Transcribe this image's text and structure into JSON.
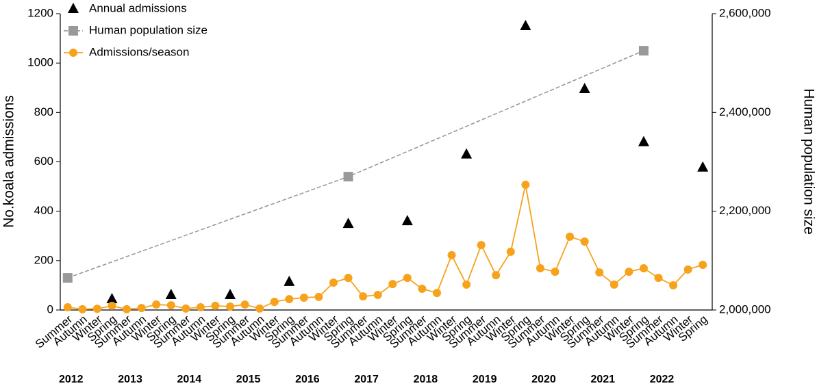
{
  "chart_data": {
    "type": "line",
    "categories": [
      "Summer",
      "Autumn",
      "Winter",
      "Spring",
      "Summer",
      "Autumn",
      "Winter",
      "Spring",
      "Summer",
      "Autumn",
      "Winter",
      "Spring",
      "Summer",
      "Autumn",
      "Winter",
      "Spring",
      "Summer",
      "Autumn",
      "Winter",
      "Spring",
      "Summer",
      "Autumn",
      "Winter",
      "Spring",
      "Summer",
      "Autumn",
      "Winter",
      "Spring",
      "Summer",
      "Autumn",
      "Winter",
      "Spring",
      "Summer",
      "Autumn",
      "Winter",
      "Spring",
      "Summer",
      "Autumn",
      "Winter",
      "Spring",
      "Summer",
      "Autumn",
      "Winter",
      "Spring"
    ],
    "year_labels": [
      "2012",
      "2013",
      "2014",
      "2015",
      "2016",
      "2017",
      "2018",
      "2019",
      "2020",
      "2021",
      "2022"
    ],
    "ylabel": "No.koala admissions",
    "y2label": "Human population size",
    "ylim": [
      0,
      1200
    ],
    "yticks": [
      0,
      200,
      400,
      600,
      800,
      1000,
      1200
    ],
    "y2lim": [
      2000000,
      2600000
    ],
    "y2ticks": [
      {
        "value": 2000000,
        "label": "2,000,000"
      },
      {
        "value": 2200000,
        "label": "2,200,000"
      },
      {
        "value": 2400000,
        "label": "2,400,000"
      },
      {
        "value": 2600000,
        "label": "2,600,000"
      }
    ],
    "legend": "top-left",
    "series": [
      {
        "name": "Annual admissions",
        "color": "#000000",
        "marker": "triangle",
        "line": "none",
        "values": [
          null,
          null,
          null,
          44,
          null,
          null,
          null,
          61,
          null,
          null,
          null,
          61,
          null,
          null,
          null,
          114,
          null,
          null,
          null,
          349,
          null,
          null,
          null,
          360,
          null,
          null,
          null,
          630,
          null,
          null,
          null,
          1150,
          null,
          null,
          null,
          895,
          null,
          null,
          null,
          680,
          null,
          null,
          null,
          577
        ]
      },
      {
        "name": "Human population size",
        "color": "#999999",
        "marker": "square",
        "line": "dashed",
        "axis": "y2",
        "connect_gaps": true,
        "values": [
          2065000,
          null,
          null,
          null,
          null,
          null,
          null,
          null,
          null,
          null,
          null,
          null,
          null,
          null,
          null,
          null,
          null,
          null,
          null,
          2270000,
          null,
          null,
          null,
          null,
          null,
          null,
          null,
          null,
          null,
          null,
          null,
          null,
          null,
          null,
          null,
          null,
          null,
          null,
          null,
          2525000,
          null,
          null,
          null,
          null
        ]
      },
      {
        "name": "Admissions/season",
        "color": "#f7a21b",
        "marker": "circle",
        "line": "solid",
        "values": [
          11,
          3,
          5,
          17,
          3,
          8,
          22,
          19,
          6,
          11,
          17,
          14,
          22,
          6,
          33,
          44,
          50,
          53,
          111,
          130,
          55,
          61,
          105,
          130,
          86,
          69,
          222,
          103,
          263,
          141,
          236,
          507,
          169,
          155,
          297,
          277,
          152,
          103,
          155,
          169,
          130,
          100,
          164,
          183
        ]
      }
    ]
  }
}
